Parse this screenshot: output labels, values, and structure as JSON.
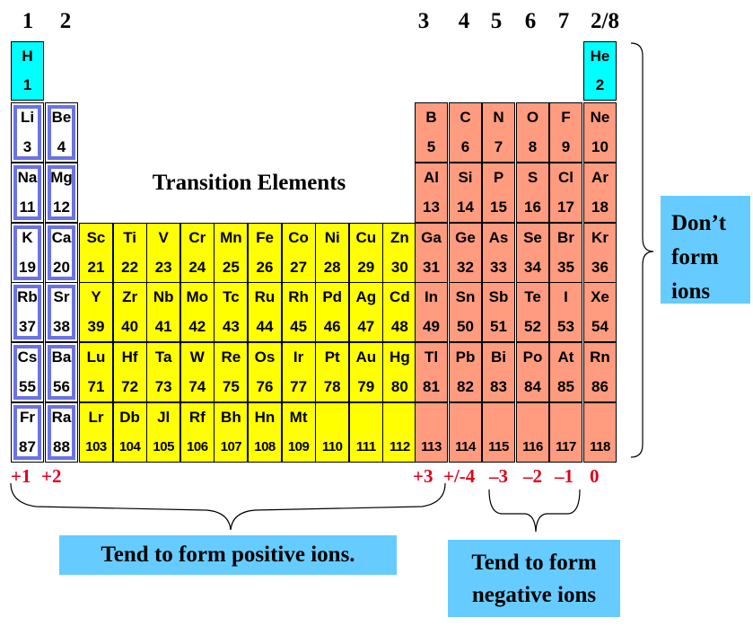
{
  "group_headers": [
    "1",
    "2",
    "3",
    "4",
    "5",
    "6",
    "7",
    "2/8"
  ],
  "transition_label": "Transition Elements",
  "charges": [
    "+1",
    "+2",
    "+3",
    "+/-4",
    "–3",
    "–2",
    "–1",
    "0"
  ],
  "boxes": {
    "right": [
      "Don’t",
      "form",
      "ions"
    ],
    "positive": "Tend to form positive ions.",
    "negative": [
      "Tend to form",
      "negative ions"
    ]
  },
  "colors": {
    "noble_gas": "#00ffff",
    "transition": "#ffff00",
    "p_block": "#ff9b7f",
    "s_block_border": "#6b72e6",
    "charge_text": "#e0001b",
    "callout_box": "#66ccff"
  },
  "elements": [
    {
      "symbol": "H",
      "number": "1",
      "row": 1,
      "col": 1,
      "type": "noble"
    },
    {
      "symbol": "He",
      "number": "2",
      "row": 1,
      "col": 18,
      "type": "noble"
    },
    {
      "symbol": "Li",
      "number": "3",
      "row": 2,
      "col": 1,
      "type": "metal"
    },
    {
      "symbol": "Be",
      "number": "4",
      "row": 2,
      "col": 2,
      "type": "metal"
    },
    {
      "symbol": "B",
      "number": "5",
      "row": 2,
      "col": 13,
      "type": "p"
    },
    {
      "symbol": "C",
      "number": "6",
      "row": 2,
      "col": 14,
      "type": "p"
    },
    {
      "symbol": "N",
      "number": "7",
      "row": 2,
      "col": 15,
      "type": "p"
    },
    {
      "symbol": "O",
      "number": "8",
      "row": 2,
      "col": 16,
      "type": "p"
    },
    {
      "symbol": "F",
      "number": "9",
      "row": 2,
      "col": 17,
      "type": "p"
    },
    {
      "symbol": "Ne",
      "number": "10",
      "row": 2,
      "col": 18,
      "type": "p"
    },
    {
      "symbol": "Na",
      "number": "11",
      "row": 3,
      "col": 1,
      "type": "metal"
    },
    {
      "symbol": "Mg",
      "number": "12",
      "row": 3,
      "col": 2,
      "type": "metal"
    },
    {
      "symbol": "Al",
      "number": "13",
      "row": 3,
      "col": 13,
      "type": "p"
    },
    {
      "symbol": "Si",
      "number": "14",
      "row": 3,
      "col": 14,
      "type": "p"
    },
    {
      "symbol": "P",
      "number": "15",
      "row": 3,
      "col": 15,
      "type": "p"
    },
    {
      "symbol": "S",
      "number": "16",
      "row": 3,
      "col": 16,
      "type": "p"
    },
    {
      "symbol": "Cl",
      "number": "17",
      "row": 3,
      "col": 17,
      "type": "p"
    },
    {
      "symbol": "Ar",
      "number": "18",
      "row": 3,
      "col": 18,
      "type": "p"
    },
    {
      "symbol": "K",
      "number": "19",
      "row": 4,
      "col": 1,
      "type": "metal"
    },
    {
      "symbol": "Ca",
      "number": "20",
      "row": 4,
      "col": 2,
      "type": "metal"
    },
    {
      "symbol": "Sc",
      "number": "21",
      "row": 4,
      "col": 3,
      "type": "t"
    },
    {
      "symbol": "Ti",
      "number": "22",
      "row": 4,
      "col": 4,
      "type": "t"
    },
    {
      "symbol": "V",
      "number": "23",
      "row": 4,
      "col": 5,
      "type": "t"
    },
    {
      "symbol": "Cr",
      "number": "24",
      "row": 4,
      "col": 6,
      "type": "t"
    },
    {
      "symbol": "Mn",
      "number": "25",
      "row": 4,
      "col": 7,
      "type": "t"
    },
    {
      "symbol": "Fe",
      "number": "26",
      "row": 4,
      "col": 8,
      "type": "t"
    },
    {
      "symbol": "Co",
      "number": "27",
      "row": 4,
      "col": 9,
      "type": "t"
    },
    {
      "symbol": "Ni",
      "number": "28",
      "row": 4,
      "col": 10,
      "type": "t"
    },
    {
      "symbol": "Cu",
      "number": "29",
      "row": 4,
      "col": 11,
      "type": "t"
    },
    {
      "symbol": "Zn",
      "number": "30",
      "row": 4,
      "col": 12,
      "type": "t"
    },
    {
      "symbol": "Ga",
      "number": "31",
      "row": 4,
      "col": 13,
      "type": "p"
    },
    {
      "symbol": "Ge",
      "number": "32",
      "row": 4,
      "col": 14,
      "type": "p"
    },
    {
      "symbol": "As",
      "number": "33",
      "row": 4,
      "col": 15,
      "type": "p"
    },
    {
      "symbol": "Se",
      "number": "34",
      "row": 4,
      "col": 16,
      "type": "p"
    },
    {
      "symbol": "Br",
      "number": "35",
      "row": 4,
      "col": 17,
      "type": "p"
    },
    {
      "symbol": "Kr",
      "number": "36",
      "row": 4,
      "col": 18,
      "type": "p"
    },
    {
      "symbol": "Rb",
      "number": "37",
      "row": 5,
      "col": 1,
      "type": "metal"
    },
    {
      "symbol": "Sr",
      "number": "38",
      "row": 5,
      "col": 2,
      "type": "metal"
    },
    {
      "symbol": "Y",
      "number": "39",
      "row": 5,
      "col": 3,
      "type": "t"
    },
    {
      "symbol": "Zr",
      "number": "40",
      "row": 5,
      "col": 4,
      "type": "t"
    },
    {
      "symbol": "Nb",
      "number": "41",
      "row": 5,
      "col": 5,
      "type": "t"
    },
    {
      "symbol": "Mo",
      "number": "42",
      "row": 5,
      "col": 6,
      "type": "t"
    },
    {
      "symbol": "Tc",
      "number": "43",
      "row": 5,
      "col": 7,
      "type": "t"
    },
    {
      "symbol": "Ru",
      "number": "44",
      "row": 5,
      "col": 8,
      "type": "t"
    },
    {
      "symbol": "Rh",
      "number": "45",
      "row": 5,
      "col": 9,
      "type": "t"
    },
    {
      "symbol": "Pd",
      "number": "46",
      "row": 5,
      "col": 10,
      "type": "t"
    },
    {
      "symbol": "Ag",
      "number": "47",
      "row": 5,
      "col": 11,
      "type": "t"
    },
    {
      "symbol": "Cd",
      "number": "48",
      "row": 5,
      "col": 12,
      "type": "t"
    },
    {
      "symbol": "In",
      "number": "49",
      "row": 5,
      "col": 13,
      "type": "p"
    },
    {
      "symbol": "Sn",
      "number": "50",
      "row": 5,
      "col": 14,
      "type": "p"
    },
    {
      "symbol": "Sb",
      "number": "51",
      "row": 5,
      "col": 15,
      "type": "p"
    },
    {
      "symbol": "Te",
      "number": "52",
      "row": 5,
      "col": 16,
      "type": "p"
    },
    {
      "symbol": "I",
      "number": "53",
      "row": 5,
      "col": 17,
      "type": "p"
    },
    {
      "symbol": "Xe",
      "number": "54",
      "row": 5,
      "col": 18,
      "type": "p"
    },
    {
      "symbol": "Cs",
      "number": "55",
      "row": 6,
      "col": 1,
      "type": "metal"
    },
    {
      "symbol": "Ba",
      "number": "56",
      "row": 6,
      "col": 2,
      "type": "metal"
    },
    {
      "symbol": "Lu",
      "number": "71",
      "row": 6,
      "col": 3,
      "type": "t"
    },
    {
      "symbol": "Hf",
      "number": "72",
      "row": 6,
      "col": 4,
      "type": "t"
    },
    {
      "symbol": "Ta",
      "number": "73",
      "row": 6,
      "col": 5,
      "type": "t"
    },
    {
      "symbol": "W",
      "number": "74",
      "row": 6,
      "col": 6,
      "type": "t"
    },
    {
      "symbol": "Re",
      "number": "75",
      "row": 6,
      "col": 7,
      "type": "t"
    },
    {
      "symbol": "Os",
      "number": "76",
      "row": 6,
      "col": 8,
      "type": "t"
    },
    {
      "symbol": "Ir",
      "number": "77",
      "row": 6,
      "col": 9,
      "type": "t"
    },
    {
      "symbol": "Pt",
      "number": "78",
      "row": 6,
      "col": 10,
      "type": "t"
    },
    {
      "symbol": "Au",
      "number": "79",
      "row": 6,
      "col": 11,
      "type": "t"
    },
    {
      "symbol": "Hg",
      "number": "80",
      "row": 6,
      "col": 12,
      "type": "t"
    },
    {
      "symbol": "Tl",
      "number": "81",
      "row": 6,
      "col": 13,
      "type": "p"
    },
    {
      "symbol": "Pb",
      "number": "82",
      "row": 6,
      "col": 14,
      "type": "p"
    },
    {
      "symbol": "Bi",
      "number": "83",
      "row": 6,
      "col": 15,
      "type": "p"
    },
    {
      "symbol": "Po",
      "number": "84",
      "row": 6,
      "col": 16,
      "type": "p"
    },
    {
      "symbol": "At",
      "number": "85",
      "row": 6,
      "col": 17,
      "type": "p"
    },
    {
      "symbol": "Rn",
      "number": "86",
      "row": 6,
      "col": 18,
      "type": "p"
    },
    {
      "symbol": "Fr",
      "number": "87",
      "row": 7,
      "col": 1,
      "type": "metal"
    },
    {
      "symbol": "Ra",
      "number": "88",
      "row": 7,
      "col": 2,
      "type": "metal"
    },
    {
      "symbol": "Lr",
      "number": "103",
      "row": 7,
      "col": 3,
      "type": "t"
    },
    {
      "symbol": "Db",
      "number": "104",
      "row": 7,
      "col": 4,
      "type": "t"
    },
    {
      "symbol": "Jl",
      "number": "105",
      "row": 7,
      "col": 5,
      "type": "t"
    },
    {
      "symbol": "Rf",
      "number": "106",
      "row": 7,
      "col": 6,
      "type": "t"
    },
    {
      "symbol": "Bh",
      "number": "107",
      "row": 7,
      "col": 7,
      "type": "t"
    },
    {
      "symbol": "Hn",
      "number": "108",
      "row": 7,
      "col": 8,
      "type": "t"
    },
    {
      "symbol": "Mt",
      "number": "109",
      "row": 7,
      "col": 9,
      "type": "t"
    },
    {
      "symbol": "",
      "number": "110",
      "row": 7,
      "col": 10,
      "type": "t"
    },
    {
      "symbol": "",
      "number": "111",
      "row": 7,
      "col": 11,
      "type": "t"
    },
    {
      "symbol": "",
      "number": "112",
      "row": 7,
      "col": 12,
      "type": "t"
    },
    {
      "symbol": "",
      "number": "113",
      "row": 7,
      "col": 13,
      "type": "p"
    },
    {
      "symbol": "",
      "number": "114",
      "row": 7,
      "col": 14,
      "type": "p"
    },
    {
      "symbol": "",
      "number": "115",
      "row": 7,
      "col": 15,
      "type": "p"
    },
    {
      "symbol": "",
      "number": "116",
      "row": 7,
      "col": 16,
      "type": "p"
    },
    {
      "symbol": "",
      "number": "117",
      "row": 7,
      "col": 17,
      "type": "p"
    },
    {
      "symbol": "",
      "number": "118",
      "row": 7,
      "col": 18,
      "type": "p"
    }
  ]
}
